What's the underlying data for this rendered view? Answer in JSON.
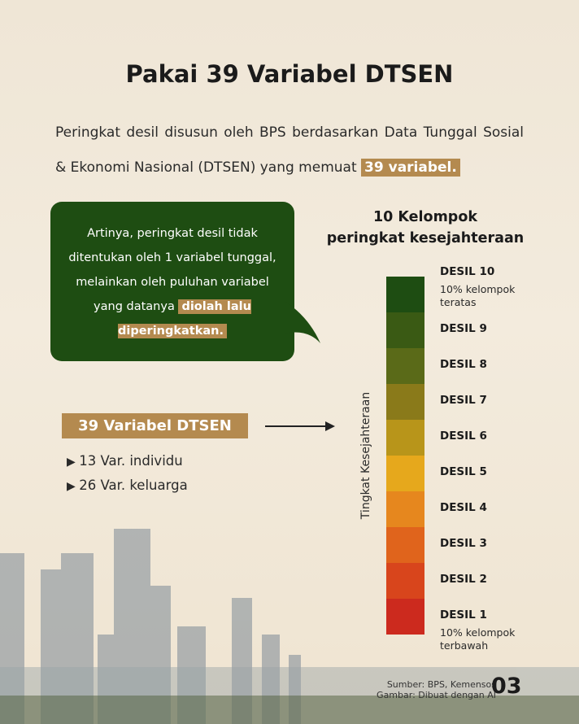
{
  "title": "Pakai 39 Variabel DTSEN",
  "intro": {
    "text": "Peringkat desil disusun oleh BPS berdasarkan Data Tunggal Sosial & Ekonomi Nasional (DTSEN) yang memuat",
    "highlight": "39 variabel."
  },
  "callout": {
    "text": "Artinya, peringkat desil tidak ditentukan oleh 1 variabel tunggal, melainkan oleh puluhan variabel yang datanya",
    "highlight": "diolah lalu diperingkatkan."
  },
  "variables": {
    "label": "39 Variabel DTSEN",
    "items": [
      "13 Var. individu",
      "26 Var. keluarga"
    ]
  },
  "scale": {
    "title_lines": [
      "10 Kelompok",
      "peringkat kesejahteraan"
    ],
    "axis_label": "Tingkat Kesejahteraan",
    "levels": [
      {
        "label": "DESIL 10",
        "note": "10% kelompok teratas",
        "color": "#1e4d12"
      },
      {
        "label": "DESIL 9",
        "color": "#3a5a14"
      },
      {
        "label": "DESIL 8",
        "color": "#5a6a18"
      },
      {
        "label": "DESIL 7",
        "color": "#8a7a1a"
      },
      {
        "label": "DESIL 6",
        "color": "#b8951a"
      },
      {
        "label": "DESIL 5",
        "color": "#e6a81c"
      },
      {
        "label": "DESIL 4",
        "color": "#e6871e"
      },
      {
        "label": "DESIL 3",
        "color": "#e0641c"
      },
      {
        "label": "DESIL 2",
        "color": "#d8451c"
      },
      {
        "label": "DESIL 1",
        "note": "10% kelompok terbawah",
        "color": "#cc2a1e"
      }
    ]
  },
  "footer": {
    "source": "Sumber: BPS, Kemensos",
    "image_credit": "Gambar: Dibuat dengan AI",
    "page": "03"
  }
}
